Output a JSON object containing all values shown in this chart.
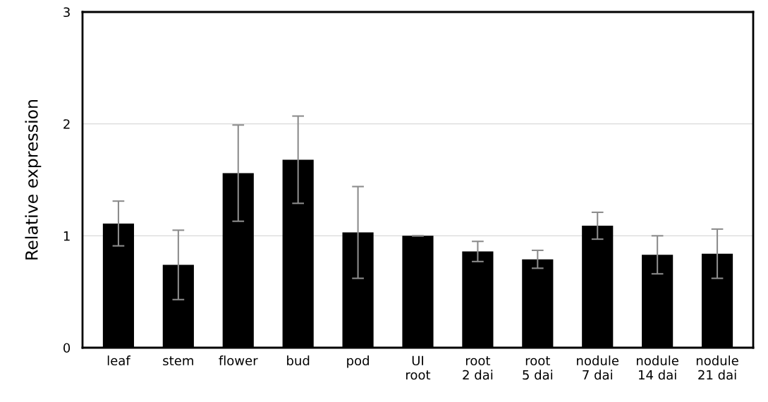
{
  "chart_data": {
    "type": "bar",
    "ylabel": "Relative expression",
    "categories": [
      "leaf",
      "stem",
      "flower",
      "bud",
      "pod",
      "UI\nroot",
      "root\n2 dai",
      "root\n5 dai",
      "nodule\n7 dai",
      "nodule\n14 dai",
      "nodule\n21 dai"
    ],
    "values": [
      1.11,
      0.74,
      1.56,
      1.68,
      1.03,
      1.0,
      0.86,
      0.79,
      1.09,
      0.83,
      0.84
    ],
    "errors": [
      0.2,
      0.31,
      0.43,
      0.39,
      0.41,
      0.0,
      0.09,
      0.08,
      0.12,
      0.17,
      0.22
    ],
    "color": "#000000",
    "ylim": [
      0,
      3
    ],
    "yticks": [
      0,
      1,
      2,
      3
    ],
    "grid": "y"
  }
}
